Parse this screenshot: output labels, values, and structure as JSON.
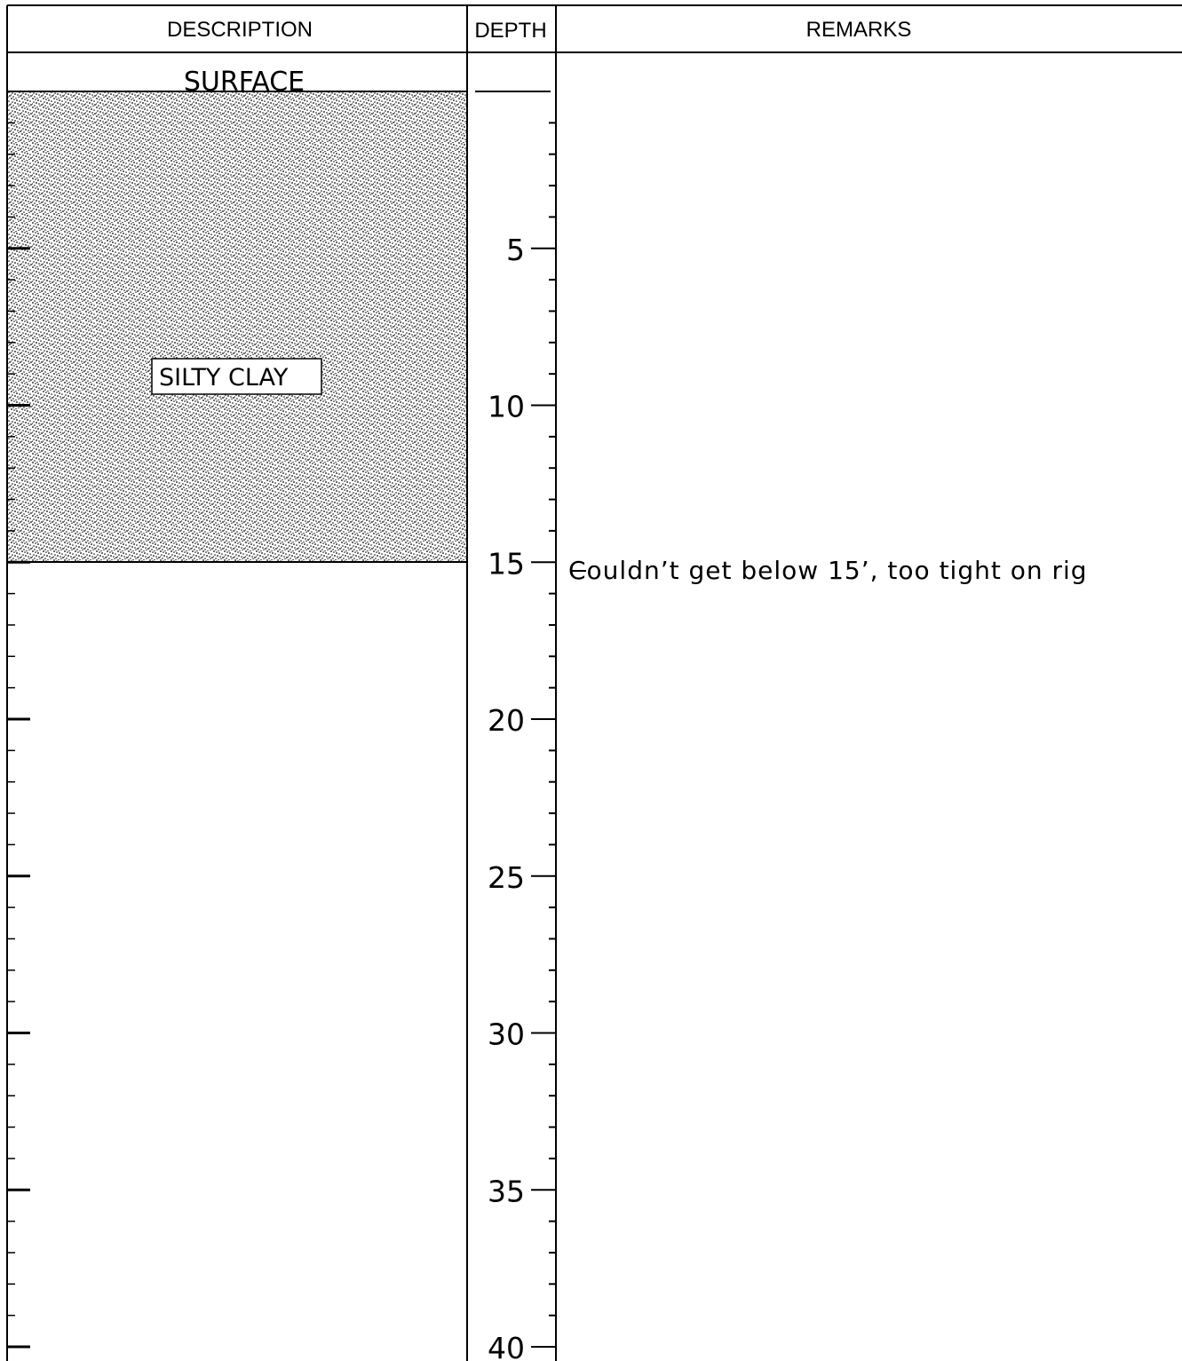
{
  "headers": {
    "description": "DESCRIPTION",
    "depth": "DEPTH",
    "remarks": "REMARKS"
  },
  "surface_label": "SURFACE",
  "depth_scale": {
    "min": 0,
    "max": 40,
    "major_step": 5,
    "minor_step": 1,
    "labels": [
      "5",
      "10",
      "15",
      "20",
      "25",
      "30",
      "35",
      "40"
    ]
  },
  "layers": [
    {
      "name": "SILTY CLAY",
      "top_depth": 0,
      "bottom_depth": 15,
      "pattern": "stipple"
    }
  ],
  "remarks": [
    {
      "depth": 15,
      "text": "Couldn’t get below 15’, too tight on rig"
    }
  ]
}
